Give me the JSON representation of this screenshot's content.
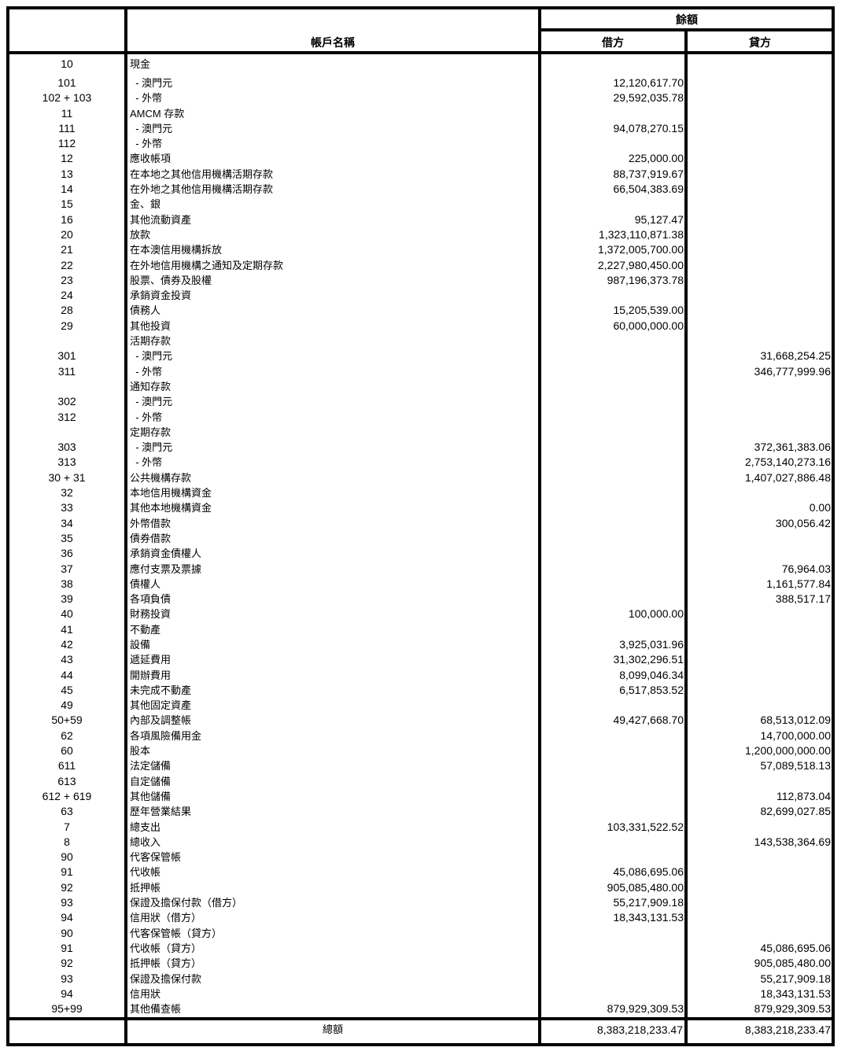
{
  "header": {
    "balance": "餘額",
    "account_name": "帳戶名稱",
    "debit": "借方",
    "credit": "貸方"
  },
  "rows": [
    {
      "code": "10",
      "name": "現金",
      "debit": "",
      "credit": ""
    },
    {
      "code": "101",
      "name": "  - 澳門元",
      "debit": "12,120,617.70",
      "credit": ""
    },
    {
      "code": "102 + 103",
      "name": "  - 外幣",
      "debit": "29,592,035.78",
      "credit": ""
    },
    {
      "code": "11",
      "name": "AMCM 存款",
      "debit": "",
      "credit": ""
    },
    {
      "code": "111",
      "name": "  - 澳門元",
      "debit": "94,078,270.15",
      "credit": ""
    },
    {
      "code": "112",
      "name": "  - 外幣",
      "debit": "",
      "credit": ""
    },
    {
      "code": "12",
      "name": "應收帳項",
      "debit": "225,000.00",
      "credit": ""
    },
    {
      "code": "13",
      "name": "在本地之其他信用機構活期存款",
      "debit": "88,737,919.67",
      "credit": ""
    },
    {
      "code": "14",
      "name": "在外地之其他信用機構活期存款",
      "debit": "66,504,383.69",
      "credit": ""
    },
    {
      "code": "15",
      "name": "金、銀",
      "debit": "",
      "credit": ""
    },
    {
      "code": "16",
      "name": "其他流動資產",
      "debit": "95,127.47",
      "credit": ""
    },
    {
      "code": "20",
      "name": "放款",
      "debit": "1,323,110,871.38",
      "credit": ""
    },
    {
      "code": "21",
      "name": "在本澳信用機構拆放",
      "debit": "1,372,005,700.00",
      "credit": ""
    },
    {
      "code": "22",
      "name": "在外地信用機構之通知及定期存款",
      "debit": "2,227,980,450.00",
      "credit": ""
    },
    {
      "code": "23",
      "name": "股票、債券及股權",
      "debit": "987,196,373.78",
      "credit": ""
    },
    {
      "code": "24",
      "name": "承銷資金投資",
      "debit": "",
      "credit": ""
    },
    {
      "code": "28",
      "name": "債務人",
      "debit": "15,205,539.00",
      "credit": ""
    },
    {
      "code": "29",
      "name": "其他投資",
      "debit": "60,000,000.00",
      "credit": ""
    },
    {
      "code": "",
      "name": "活期存款",
      "debit": "",
      "credit": ""
    },
    {
      "code": "301",
      "name": "  - 澳門元",
      "debit": "",
      "credit": "31,668,254.25"
    },
    {
      "code": "311",
      "name": "  - 外幣",
      "debit": "",
      "credit": "346,777,999.96"
    },
    {
      "code": "",
      "name": "通知存款",
      "debit": "",
      "credit": ""
    },
    {
      "code": "302",
      "name": "  - 澳門元",
      "debit": "",
      "credit": ""
    },
    {
      "code": "312",
      "name": "  - 外幣",
      "debit": "",
      "credit": ""
    },
    {
      "code": "",
      "name": "定期存款",
      "debit": "",
      "credit": ""
    },
    {
      "code": "303",
      "name": "  - 澳門元",
      "debit": "",
      "credit": "372,361,383.06"
    },
    {
      "code": "313",
      "name": "  - 外幣",
      "debit": "",
      "credit": "2,753,140,273.16"
    },
    {
      "code": "30 + 31",
      "name": "公共機構存款",
      "debit": "",
      "credit": "1,407,027,886.48"
    },
    {
      "code": "32",
      "name": "本地信用機構資金",
      "debit": "",
      "credit": ""
    },
    {
      "code": "33",
      "name": "其他本地機構資金",
      "debit": "",
      "credit": "0.00"
    },
    {
      "code": "34",
      "name": "外幣借款",
      "debit": "",
      "credit": "300,056.42"
    },
    {
      "code": "35",
      "name": "債券借款",
      "debit": "",
      "credit": ""
    },
    {
      "code": "36",
      "name": "承銷資金債權人",
      "debit": "",
      "credit": ""
    },
    {
      "code": "37",
      "name": "應付支票及票據",
      "debit": "",
      "credit": "76,964.03"
    },
    {
      "code": "38",
      "name": "債權人",
      "debit": "",
      "credit": "1,161,577.84"
    },
    {
      "code": "39",
      "name": "各項負債",
      "debit": "",
      "credit": "388,517.17"
    },
    {
      "code": "40",
      "name": "財務投資",
      "debit": "100,000.00",
      "credit": ""
    },
    {
      "code": "41",
      "name": "不動產",
      "debit": "",
      "credit": ""
    },
    {
      "code": "42",
      "name": "設備",
      "debit": "3,925,031.96",
      "credit": ""
    },
    {
      "code": "43",
      "name": "遞延費用",
      "debit": "31,302,296.51",
      "credit": ""
    },
    {
      "code": "44",
      "name": "開辦費用",
      "debit": "8,099,046.34",
      "credit": ""
    },
    {
      "code": "45",
      "name": "未完成不動產",
      "debit": "6,517,853.52",
      "credit": ""
    },
    {
      "code": "49",
      "name": "其他固定資產",
      "debit": "",
      "credit": ""
    },
    {
      "code": "50+59",
      "name": "內部及調整帳",
      "debit": "49,427,668.70",
      "credit": "68,513,012.09"
    },
    {
      "code": "62",
      "name": "各項風險備用金",
      "debit": "",
      "credit": "14,700,000.00"
    },
    {
      "code": "60",
      "name": "股本",
      "debit": "",
      "credit": "1,200,000,000.00"
    },
    {
      "code": "611",
      "name": "法定儲備",
      "debit": "",
      "credit": "57,089,518.13"
    },
    {
      "code": "613",
      "name": "自定儲備",
      "debit": "",
      "credit": ""
    },
    {
      "code": "612 + 619",
      "name": "其他儲備",
      "debit": "",
      "credit": "112,873.04"
    },
    {
      "code": "63",
      "name": "歷年營業結果",
      "debit": "",
      "credit": "82,699,027.85"
    },
    {
      "code": "7",
      "name": "總支出",
      "debit": "103,331,522.52",
      "credit": ""
    },
    {
      "code": "8",
      "name": "總收入",
      "debit": "",
      "credit": "143,538,364.69"
    },
    {
      "code": "90",
      "name": "代客保管帳",
      "debit": "",
      "credit": ""
    },
    {
      "code": "91",
      "name": "代收帳",
      "debit": "45,086,695.06",
      "credit": ""
    },
    {
      "code": "92",
      "name": "抵押帳",
      "debit": "905,085,480.00",
      "credit": ""
    },
    {
      "code": "93",
      "name": "保證及擔保付款（借方）",
      "debit": "55,217,909.18",
      "credit": ""
    },
    {
      "code": "94",
      "name": "信用狀（借方）",
      "debit": "18,343,131.53",
      "credit": ""
    },
    {
      "code": "90",
      "name": "代客保管帳（貸方）",
      "debit": "",
      "credit": ""
    },
    {
      "code": "91",
      "name": "代收帳（貸方）",
      "debit": "",
      "credit": "45,086,695.06"
    },
    {
      "code": "92",
      "name": "抵押帳（貸方）",
      "debit": "",
      "credit": "905,085,480.00"
    },
    {
      "code": "93",
      "name": "保證及擔保付款",
      "debit": "",
      "credit": "55,217,909.18"
    },
    {
      "code": "94",
      "name": "信用狀",
      "debit": "",
      "credit": "18,343,131.53"
    },
    {
      "code": "95+99",
      "name": "其他備查帳",
      "debit": "879,929,309.53",
      "credit": "879,929,309.53"
    }
  ],
  "total": {
    "label": "總額",
    "debit": "8,383,218,233.47",
    "credit": "8,383,218,233.47"
  }
}
